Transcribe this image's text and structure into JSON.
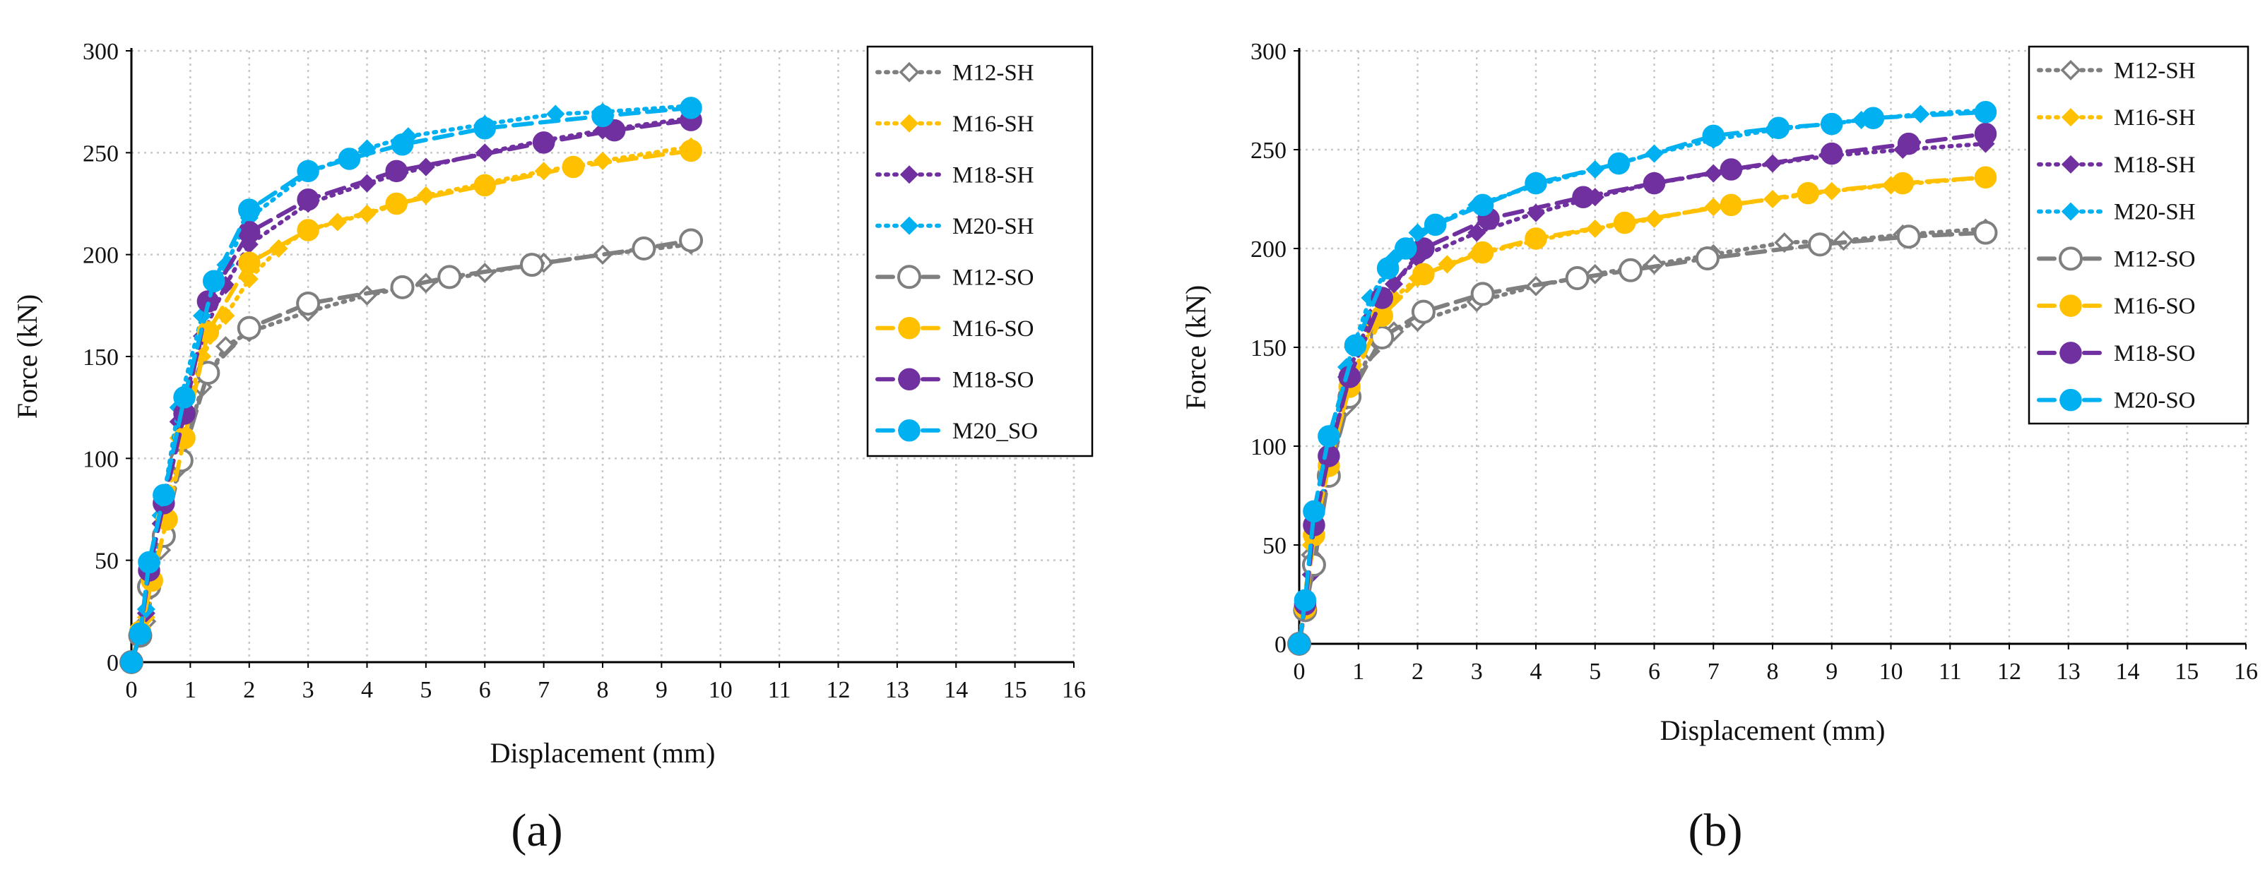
{
  "figure": {
    "captions": [
      "(a)",
      "(b)"
    ]
  },
  "chart_data": [
    {
      "type": "line",
      "panel": "(a)",
      "xlabel": "Displacement  (mm)",
      "ylabel": "Force (kN)",
      "xlim": [
        0,
        16
      ],
      "ylim": [
        0,
        300
      ],
      "xticks": [
        0,
        1,
        2,
        3,
        4,
        5,
        6,
        7,
        8,
        9,
        10,
        11,
        12,
        13,
        14,
        15,
        16
      ],
      "yticks": [
        0,
        50,
        100,
        150,
        200,
        250,
        300
      ],
      "grid": true,
      "legend_position": "top-right",
      "series": [
        {
          "name": "M12-SH",
          "color": "#7f7f7f",
          "dash": "dot",
          "marker": "diamond-open",
          "x": [
            0,
            0.25,
            0.5,
            0.8,
            1.2,
            1.6,
            2.0,
            3.0,
            4.0,
            5.0,
            6.0,
            7.0,
            8.0,
            9.5
          ],
          "y": [
            0,
            20,
            55,
            95,
            135,
            155,
            162,
            172,
            180,
            186,
            191,
            196,
            200,
            205
          ]
        },
        {
          "name": "M16-SH",
          "color": "#ffc000",
          "dash": "dot",
          "marker": "diamond",
          "x": [
            0,
            0.25,
            0.5,
            0.8,
            1.2,
            1.6,
            2.0,
            2.5,
            3.0,
            3.5,
            4.0,
            5.0,
            6.0,
            7.0,
            8.0,
            9.5
          ],
          "y": [
            0,
            22,
            60,
            110,
            150,
            170,
            188,
            203,
            212,
            216,
            220,
            229,
            235,
            241,
            246,
            253
          ]
        },
        {
          "name": "M18-SH",
          "color": "#7030a0",
          "dash": "dot",
          "marker": "diamond",
          "x": [
            0,
            0.25,
            0.5,
            0.8,
            1.2,
            1.6,
            2.0,
            3.0,
            4.0,
            5.0,
            6.0,
            7.0,
            8.0,
            9.5
          ],
          "y": [
            0,
            24,
            68,
            118,
            160,
            185,
            205,
            225,
            235,
            243,
            250,
            256,
            261,
            267
          ]
        },
        {
          "name": "M20-SH",
          "color": "#00b0f0",
          "dash": "dot",
          "marker": "diamond",
          "x": [
            0,
            0.25,
            0.5,
            0.8,
            1.2,
            1.6,
            2.0,
            3.0,
            4.0,
            4.7,
            6.0,
            7.2,
            8.0,
            9.5
          ],
          "y": [
            0,
            26,
            72,
            125,
            170,
            195,
            218,
            240,
            252,
            258,
            264,
            269,
            270,
            273
          ]
        },
        {
          "name": "M12-SO",
          "color": "#7f7f7f",
          "dash": "dash",
          "marker": "circle-open",
          "x": [
            0,
            0.15,
            0.3,
            0.55,
            0.85,
            1.3,
            2.0,
            3.0,
            4.6,
            5.4,
            6.8,
            8.7,
            9.5
          ],
          "y": [
            0,
            13,
            37,
            62,
            99,
            142,
            164,
            176,
            184,
            189,
            195,
            203,
            207
          ]
        },
        {
          "name": "M16-SO",
          "color": "#ffc000",
          "dash": "dash",
          "marker": "circle",
          "x": [
            0,
            0.15,
            0.35,
            0.6,
            0.9,
            1.3,
            2.0,
            3.0,
            4.5,
            6.0,
            7.5,
            9.5
          ],
          "y": [
            0,
            15,
            40,
            70,
            110,
            162,
            196,
            212,
            225,
            234,
            243,
            251
          ]
        },
        {
          "name": "M18-SO",
          "color": "#7030a0",
          "dash": "dash",
          "marker": "circle",
          "x": [
            0,
            0.15,
            0.3,
            0.55,
            0.9,
            1.3,
            2.0,
            3.0,
            4.5,
            7.0,
            8.2,
            9.5
          ],
          "y": [
            0,
            14,
            45,
            78,
            122,
            177,
            211,
            227,
            241,
            255,
            261,
            266
          ]
        },
        {
          "name": "M20_SO",
          "color": "#00b0f0",
          "dash": "dash",
          "marker": "circle",
          "x": [
            0,
            0.15,
            0.3,
            0.55,
            0.9,
            1.4,
            2.0,
            3.0,
            3.7,
            4.6,
            6.0,
            8.0,
            9.5
          ],
          "y": [
            0,
            14,
            49,
            82,
            130,
            187,
            222,
            241,
            247,
            254,
            262,
            268,
            272
          ]
        }
      ]
    },
    {
      "type": "line",
      "panel": "(b)",
      "xlabel": "Displacement  (mm)",
      "ylabel": "Force (kN)",
      "xlim": [
        0,
        16
      ],
      "ylim": [
        0,
        300
      ],
      "xticks": [
        0,
        1,
        2,
        3,
        4,
        5,
        6,
        7,
        8,
        9,
        10,
        11,
        12,
        13,
        14,
        15,
        16
      ],
      "yticks": [
        0,
        50,
        100,
        150,
        200,
        250,
        300
      ],
      "grid": true,
      "legend_position": "top-right",
      "series": [
        {
          "name": "M12-SH",
          "color": "#7f7f7f",
          "dash": "dot",
          "marker": "diamond-open",
          "x": [
            0,
            0.2,
            0.5,
            0.8,
            1.2,
            1.6,
            2.0,
            3.0,
            4.0,
            5.0,
            6.0,
            7.0,
            8.2,
            9.2,
            10.2,
            11.6
          ],
          "y": [
            0,
            45,
            85,
            120,
            148,
            158,
            163,
            173,
            181,
            187,
            192,
            197,
            203,
            204,
            207,
            210
          ]
        },
        {
          "name": "M16-SH",
          "color": "#ffc000",
          "dash": "dot",
          "marker": "diamond",
          "x": [
            0,
            0.2,
            0.5,
            0.8,
            1.2,
            1.6,
            2.0,
            2.5,
            3.0,
            4.0,
            5.0,
            6.0,
            7.0,
            8.0,
            9.0,
            10.0,
            11.6
          ],
          "y": [
            0,
            50,
            88,
            125,
            160,
            175,
            185,
            192,
            197,
            204,
            210,
            215,
            221,
            225,
            229,
            232,
            236
          ]
        },
        {
          "name": "M18-SH",
          "color": "#7030a0",
          "dash": "dot",
          "marker": "diamond",
          "x": [
            0,
            0.2,
            0.5,
            0.8,
            1.2,
            1.6,
            2.0,
            3.0,
            4.0,
            5.0,
            6.0,
            7.0,
            8.0,
            9.0,
            10.2,
            11.6
          ],
          "y": [
            0,
            35,
            90,
            135,
            165,
            182,
            195,
            208,
            218,
            226,
            233,
            238,
            243,
            247,
            250,
            253
          ]
        },
        {
          "name": "M20-SH",
          "color": "#00b0f0",
          "dash": "dot",
          "marker": "diamond",
          "x": [
            0,
            0.2,
            0.5,
            0.8,
            1.2,
            1.6,
            2.0,
            3.0,
            4.0,
            5.0,
            6.0,
            7.0,
            8.0,
            9.5,
            10.5,
            11.6
          ],
          "y": [
            0,
            40,
            95,
            140,
            175,
            195,
            208,
            222,
            232,
            240,
            248,
            255,
            260,
            265,
            268,
            270
          ]
        },
        {
          "name": "M12-SO",
          "color": "#7f7f7f",
          "dash": "dash",
          "marker": "circle-open",
          "x": [
            0,
            0.1,
            0.25,
            0.5,
            0.85,
            1.4,
            2.1,
            3.1,
            4.7,
            5.6,
            6.9,
            8.8,
            10.3,
            11.6
          ],
          "y": [
            0,
            17,
            40,
            85,
            125,
            155,
            168,
            177,
            185,
            189,
            195,
            202,
            206,
            208
          ]
        },
        {
          "name": "M16-SO",
          "color": "#ffc000",
          "dash": "dash",
          "marker": "circle",
          "x": [
            0,
            0.1,
            0.25,
            0.5,
            0.85,
            1.4,
            2.1,
            3.1,
            4.0,
            5.5,
            7.3,
            8.6,
            10.2,
            11.6
          ],
          "y": [
            0,
            18,
            55,
            90,
            130,
            166,
            187,
            198,
            205,
            213,
            222,
            228,
            233,
            236
          ]
        },
        {
          "name": "M18-SO",
          "color": "#7030a0",
          "dash": "dash",
          "marker": "circle",
          "x": [
            0,
            0.1,
            0.25,
            0.5,
            0.85,
            1.4,
            2.1,
            3.2,
            4.8,
            6.0,
            7.3,
            9.0,
            10.3,
            11.6
          ],
          "y": [
            0,
            20,
            60,
            95,
            135,
            175,
            200,
            215,
            226,
            233,
            240,
            248,
            253,
            258
          ]
        },
        {
          "name": "M20-SO",
          "color": "#00b0f0",
          "dash": "dash",
          "marker": "circle",
          "x": [
            0,
            0.1,
            0.25,
            0.5,
            0.95,
            1.5,
            1.8,
            2.3,
            3.1,
            4.0,
            5.4,
            7.0,
            8.1,
            9.0,
            9.7,
            11.6
          ],
          "y": [
            0,
            22,
            67,
            105,
            151,
            190,
            200,
            212,
            222,
            233,
            243,
            257,
            261,
            263,
            266,
            269
          ]
        }
      ]
    }
  ]
}
